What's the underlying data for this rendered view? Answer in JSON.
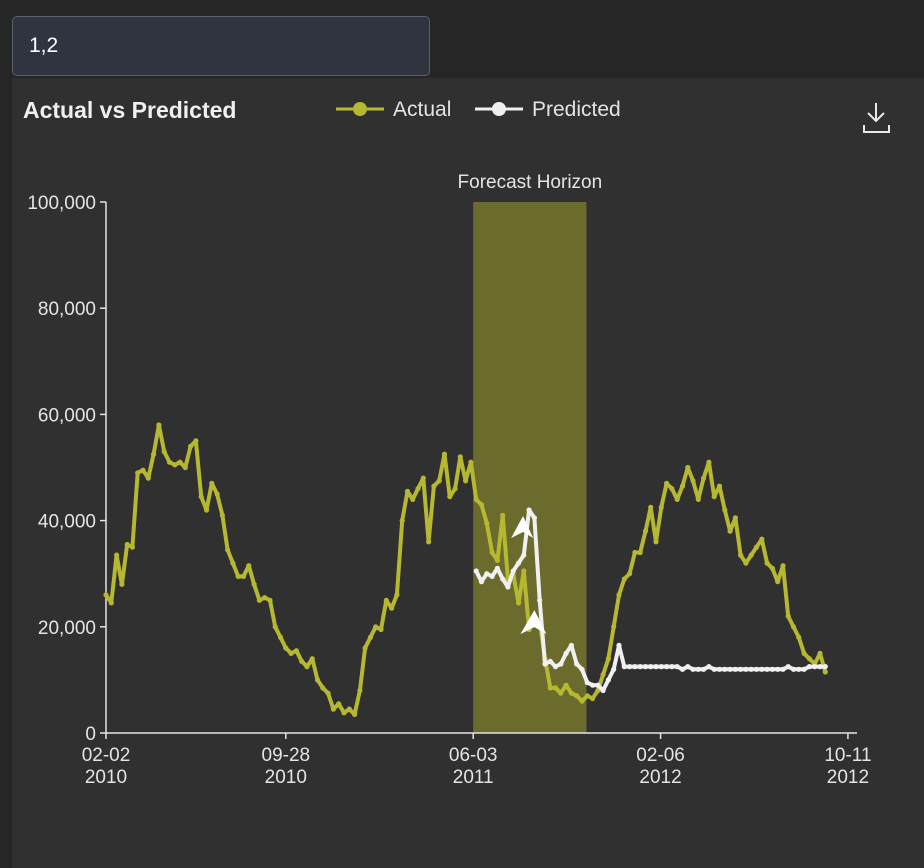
{
  "input": {
    "value": "1,2"
  },
  "colors": {
    "actual": "#b6b832",
    "predicted": "#f0f0f0",
    "horizon": "#6b6b2d",
    "panel": "#303030",
    "axis": "#e4e4e4"
  },
  "icons": {
    "download": "download-icon"
  },
  "chart_data": {
    "type": "line",
    "title": "Actual vs Predicted",
    "xlabel": "",
    "ylabel": "",
    "ylim": [
      0,
      100000
    ],
    "xlim": [
      "2010-02-02",
      "2012-10-23"
    ],
    "y_ticks": [
      0,
      20000,
      40000,
      60000,
      80000,
      100000
    ],
    "y_tick_labels": [
      "0",
      "20,000",
      "40,000",
      "60,000",
      "80,000",
      "100,000"
    ],
    "x_ticks": [
      {
        "date": "2010-02-02",
        "line1": "02-02",
        "line2": "2010"
      },
      {
        "date": "2010-09-28",
        "line1": "09-28",
        "line2": "2010"
      },
      {
        "date": "2011-06-03",
        "line1": "06-03",
        "line2": "2011"
      },
      {
        "date": "2012-02-06",
        "line1": "02-06",
        "line2": "2012"
      },
      {
        "date": "2012-10-11",
        "line1": "10-11",
        "line2": "2012"
      }
    ],
    "legend": {
      "position": "top",
      "entries": [
        "Actual",
        "Predicted"
      ]
    },
    "annotations": [
      {
        "type": "band",
        "label": "Forecast Horizon",
        "x_start": "2011-06-03",
        "x_end": "2011-10-31"
      }
    ],
    "series": [
      {
        "name": "Actual",
        "color": "#b6b832",
        "points": [
          [
            "2010-02-02",
            26000
          ],
          [
            "2010-02-09",
            24500
          ],
          [
            "2010-02-16",
            33500
          ],
          [
            "2010-02-23",
            28000
          ],
          [
            "2010-03-02",
            35500
          ],
          [
            "2010-03-09",
            35000
          ],
          [
            "2010-03-16",
            49000
          ],
          [
            "2010-03-23",
            49500
          ],
          [
            "2010-03-30",
            48000
          ],
          [
            "2010-04-06",
            52500
          ],
          [
            "2010-04-13",
            58000
          ],
          [
            "2010-04-20",
            53000
          ],
          [
            "2010-04-27",
            51000
          ],
          [
            "2010-05-04",
            50500
          ],
          [
            "2010-05-11",
            51000
          ],
          [
            "2010-05-18",
            50000
          ],
          [
            "2010-05-25",
            54000
          ],
          [
            "2010-06-01",
            55000
          ],
          [
            "2010-06-08",
            44500
          ],
          [
            "2010-06-15",
            42000
          ],
          [
            "2010-06-22",
            47000
          ],
          [
            "2010-06-29",
            45000
          ],
          [
            "2010-07-06",
            41000
          ],
          [
            "2010-07-13",
            34500
          ],
          [
            "2010-07-20",
            32000
          ],
          [
            "2010-07-27",
            29500
          ],
          [
            "2010-08-03",
            29500
          ],
          [
            "2010-08-10",
            31500
          ],
          [
            "2010-08-17",
            28000
          ],
          [
            "2010-08-24",
            25000
          ],
          [
            "2010-08-31",
            25500
          ],
          [
            "2010-09-07",
            25000
          ],
          [
            "2010-09-14",
            20000
          ],
          [
            "2010-09-21",
            18000
          ],
          [
            "2010-09-28",
            16000
          ],
          [
            "2010-10-05",
            15000
          ],
          [
            "2010-10-12",
            15500
          ],
          [
            "2010-10-19",
            13500
          ],
          [
            "2010-10-26",
            12500
          ],
          [
            "2010-11-02",
            14000
          ],
          [
            "2010-11-09",
            10000
          ],
          [
            "2010-11-16",
            8500
          ],
          [
            "2010-11-23",
            7500
          ],
          [
            "2010-11-30",
            4500
          ],
          [
            "2010-12-07",
            5500
          ],
          [
            "2010-12-14",
            3800
          ],
          [
            "2010-12-21",
            4500
          ],
          [
            "2010-12-28",
            3500
          ],
          [
            "2011-01-04",
            8000
          ],
          [
            "2011-01-11",
            16000
          ],
          [
            "2011-01-18",
            18000
          ],
          [
            "2011-01-25",
            20000
          ],
          [
            "2011-02-01",
            19500
          ],
          [
            "2011-02-08",
            25000
          ],
          [
            "2011-02-15",
            23500
          ],
          [
            "2011-02-22",
            26000
          ],
          [
            "2011-03-01",
            40000
          ],
          [
            "2011-03-08",
            45500
          ],
          [
            "2011-03-15",
            44000
          ],
          [
            "2011-03-22",
            46000
          ],
          [
            "2011-03-29",
            48000
          ],
          [
            "2011-04-05",
            36000
          ],
          [
            "2011-04-12",
            46500
          ],
          [
            "2011-04-19",
            47500
          ],
          [
            "2011-04-26",
            52500
          ],
          [
            "2011-05-03",
            44500
          ],
          [
            "2011-05-10",
            46000
          ],
          [
            "2011-05-17",
            52000
          ],
          [
            "2011-05-24",
            47500
          ],
          [
            "2011-05-31",
            51000
          ],
          [
            "2011-06-07",
            44000
          ],
          [
            "2011-06-14",
            43000
          ],
          [
            "2011-06-21",
            39500
          ],
          [
            "2011-06-28",
            34000
          ],
          [
            "2011-07-05",
            32500
          ],
          [
            "2011-07-12",
            41000
          ],
          [
            "2011-07-19",
            29000
          ],
          [
            "2011-07-26",
            30000
          ],
          [
            "2011-08-02",
            24500
          ],
          [
            "2011-08-09",
            30500
          ],
          [
            "2011-08-16",
            19500
          ],
          [
            "2011-08-23",
            22000
          ],
          [
            "2011-08-30",
            21000
          ],
          [
            "2011-09-06",
            14000
          ],
          [
            "2011-09-13",
            8500
          ],
          [
            "2011-09-20",
            8500
          ],
          [
            "2011-09-27",
            7500
          ],
          [
            "2011-10-04",
            9000
          ],
          [
            "2011-10-11",
            7500
          ],
          [
            "2011-10-18",
            7000
          ],
          [
            "2011-10-25",
            6000
          ],
          [
            "2011-11-01",
            7000
          ],
          [
            "2011-11-08",
            6500
          ],
          [
            "2011-11-15",
            8000
          ],
          [
            "2011-11-22",
            11000
          ],
          [
            "2011-11-29",
            14000
          ],
          [
            "2011-12-06",
            20000
          ],
          [
            "2011-12-13",
            26000
          ],
          [
            "2011-12-20",
            29000
          ],
          [
            "2011-12-27",
            30000
          ],
          [
            "2012-01-03",
            34000
          ],
          [
            "2012-01-10",
            34000
          ],
          [
            "2012-01-17",
            38000
          ],
          [
            "2012-01-24",
            42500
          ],
          [
            "2012-01-31",
            36000
          ],
          [
            "2012-02-07",
            42500
          ],
          [
            "2012-02-14",
            47000
          ],
          [
            "2012-02-21",
            46000
          ],
          [
            "2012-02-28",
            44000
          ],
          [
            "2012-03-06",
            46500
          ],
          [
            "2012-03-13",
            50000
          ],
          [
            "2012-03-20",
            47500
          ],
          [
            "2012-03-27",
            44000
          ],
          [
            "2012-04-03",
            48000
          ],
          [
            "2012-04-10",
            51000
          ],
          [
            "2012-04-17",
            44500
          ],
          [
            "2012-04-24",
            46500
          ],
          [
            "2012-05-01",
            42000
          ],
          [
            "2012-05-08",
            38000
          ],
          [
            "2012-05-15",
            40500
          ],
          [
            "2012-05-22",
            33500
          ],
          [
            "2012-05-29",
            32000
          ],
          [
            "2012-06-05",
            33500
          ],
          [
            "2012-06-12",
            35000
          ],
          [
            "2012-06-19",
            36500
          ],
          [
            "2012-06-26",
            32000
          ],
          [
            "2012-07-03",
            31000
          ],
          [
            "2012-07-10",
            28500
          ],
          [
            "2012-07-17",
            31500
          ],
          [
            "2012-07-24",
            22000
          ],
          [
            "2012-07-31",
            20000
          ],
          [
            "2012-08-07",
            18000
          ],
          [
            "2012-08-14",
            15000
          ],
          [
            "2012-08-21",
            14000
          ],
          [
            "2012-08-28",
            13000
          ],
          [
            "2012-09-04",
            15000
          ],
          [
            "2012-09-11",
            11500
          ]
        ]
      },
      {
        "name": "Predicted",
        "color": "#f0f0f0",
        "points": [
          [
            "2011-06-07",
            30500
          ],
          [
            "2011-06-14",
            28500
          ],
          [
            "2011-06-21",
            30000
          ],
          [
            "2011-06-28",
            29500
          ],
          [
            "2011-07-05",
            31000
          ],
          [
            "2011-07-12",
            29000
          ],
          [
            "2011-07-19",
            27500
          ],
          [
            "2011-07-26",
            30500
          ],
          [
            "2011-08-02",
            32000
          ],
          [
            "2011-08-09",
            33500
          ],
          [
            "2011-08-16",
            42000
          ],
          [
            "2011-08-23",
            40500
          ],
          [
            "2011-08-30",
            25000
          ],
          [
            "2011-09-06",
            13000
          ],
          [
            "2011-09-13",
            13500
          ],
          [
            "2011-09-20",
            12500
          ],
          [
            "2011-09-27",
            13000
          ],
          [
            "2011-10-04",
            15000
          ],
          [
            "2011-10-11",
            16500
          ],
          [
            "2011-10-18",
            13000
          ],
          [
            "2011-10-25",
            12000
          ],
          [
            "2011-11-01",
            9500
          ],
          [
            "2011-11-08",
            9000
          ],
          [
            "2011-11-15",
            9000
          ],
          [
            "2011-11-22",
            8000
          ],
          [
            "2011-11-29",
            10000
          ],
          [
            "2011-12-06",
            12000
          ],
          [
            "2011-12-13",
            16500
          ],
          [
            "2011-12-20",
            12500
          ],
          [
            "2011-12-27",
            12500
          ],
          [
            "2012-01-03",
            12500
          ],
          [
            "2012-01-10",
            12500
          ],
          [
            "2012-01-17",
            12500
          ],
          [
            "2012-01-24",
            12500
          ],
          [
            "2012-01-31",
            12500
          ],
          [
            "2012-02-07",
            12500
          ],
          [
            "2012-02-14",
            12500
          ],
          [
            "2012-02-21",
            12500
          ],
          [
            "2012-02-28",
            12500
          ],
          [
            "2012-03-06",
            12000
          ],
          [
            "2012-03-13",
            12500
          ],
          [
            "2012-03-20",
            12000
          ],
          [
            "2012-03-27",
            12000
          ],
          [
            "2012-04-03",
            12000
          ],
          [
            "2012-04-10",
            12500
          ],
          [
            "2012-04-17",
            12000
          ],
          [
            "2012-04-24",
            12000
          ],
          [
            "2012-05-01",
            12000
          ],
          [
            "2012-05-08",
            12000
          ],
          [
            "2012-05-15",
            12000
          ],
          [
            "2012-05-22",
            12000
          ],
          [
            "2012-05-29",
            12000
          ],
          [
            "2012-06-05",
            12000
          ],
          [
            "2012-06-12",
            12000
          ],
          [
            "2012-06-19",
            12000
          ],
          [
            "2012-06-26",
            12000
          ],
          [
            "2012-07-03",
            12000
          ],
          [
            "2012-07-10",
            12000
          ],
          [
            "2012-07-17",
            12000
          ],
          [
            "2012-07-24",
            12500
          ],
          [
            "2012-07-31",
            12000
          ],
          [
            "2012-08-07",
            12000
          ],
          [
            "2012-08-14",
            12000
          ],
          [
            "2012-08-21",
            12500
          ],
          [
            "2012-08-28",
            12500
          ],
          [
            "2012-09-04",
            12500
          ],
          [
            "2012-09-11",
            12500
          ]
        ]
      }
    ]
  }
}
